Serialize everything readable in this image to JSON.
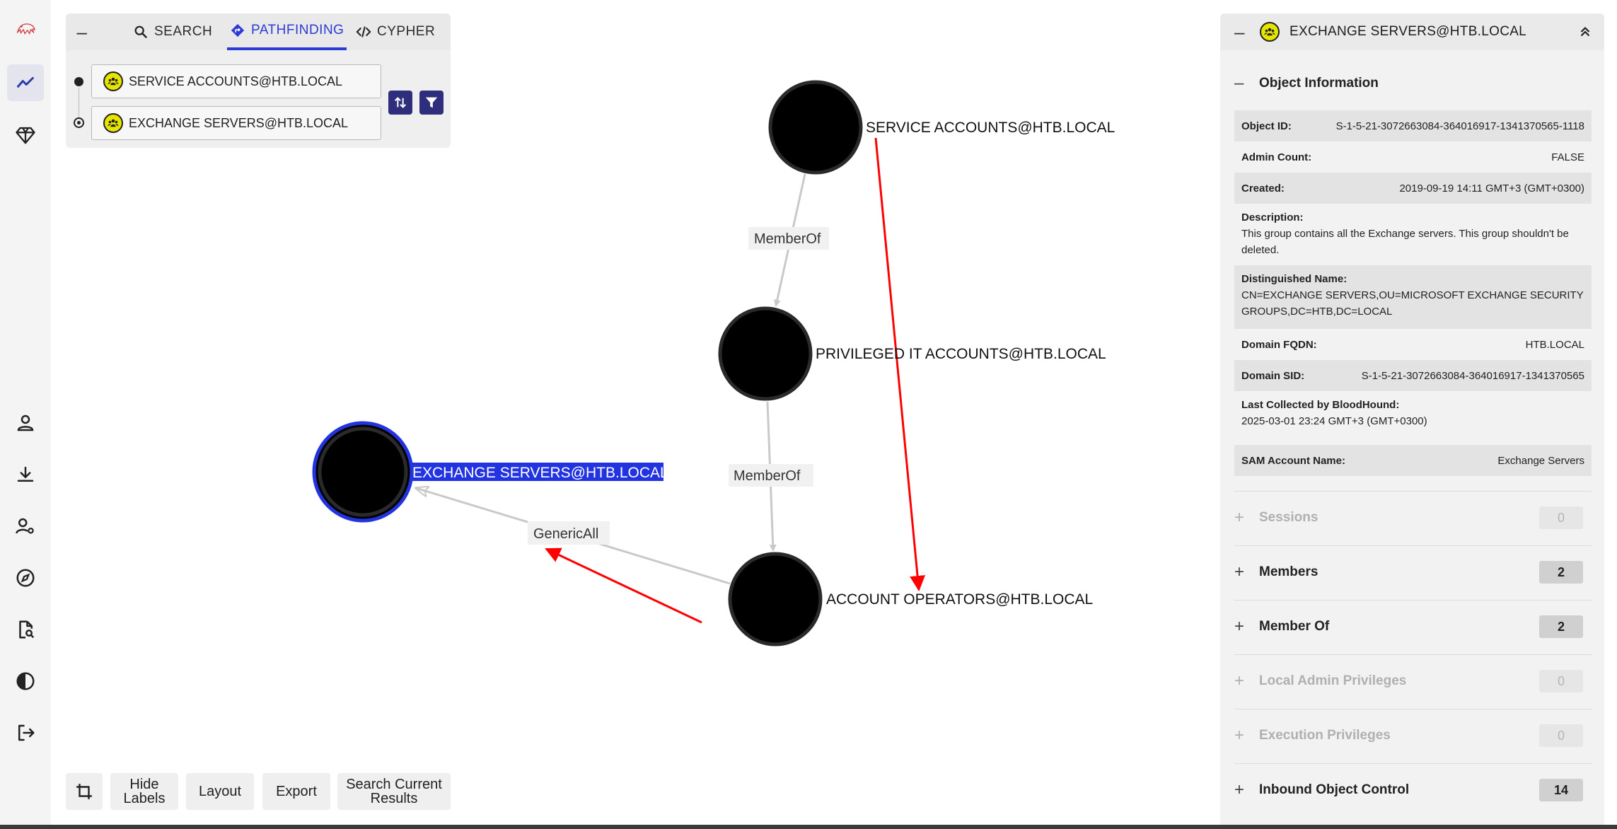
{
  "search": {
    "tabs": [
      {
        "label": "SEARCH",
        "icon": "search-icon"
      },
      {
        "label": "PATHFINDING",
        "icon": "pathfinding-icon"
      },
      {
        "label": "CYPHER",
        "icon": "code-icon"
      }
    ],
    "active_tab": "PATHFINDING",
    "start_node": "SERVICE ACCOUNTS@HTB.LOCAL",
    "end_node": "EXCHANGE SERVERS@HTB.LOCAL"
  },
  "graph": {
    "nodes": [
      {
        "id": "svc",
        "label": "SERVICE ACCOUNTS@HTB.LOCAL"
      },
      {
        "id": "priv",
        "label": "PRIVILEGED IT ACCOUNTS@HTB.LOCAL"
      },
      {
        "id": "exch",
        "label": "EXCHANGE SERVERS@HTB.LOCAL",
        "selected": true
      },
      {
        "id": "acct",
        "label": "ACCOUNT OPERATORS@HTB.LOCAL"
      }
    ],
    "edges": [
      {
        "from": "svc",
        "to": "priv",
        "label": "MemberOf"
      },
      {
        "from": "priv",
        "to": "acct",
        "label": "MemberOf"
      },
      {
        "from": "acct",
        "to": "exch",
        "label": "GenericAll"
      }
    ]
  },
  "toolbar": {
    "hide_labels": "Hide Labels",
    "layout": "Layout",
    "export": "Export",
    "search_current": "Search Current Results"
  },
  "panel": {
    "title": "EXCHANGE SERVERS@HTB.LOCAL",
    "object_info_label": "Object Information",
    "object_id": {
      "key": "Object ID:",
      "value": "S-1-5-21-3072663084-364016917-1341370565-1118"
    },
    "admin_count": {
      "key": "Admin Count:",
      "value": "FALSE"
    },
    "created": {
      "key": "Created:",
      "value": "2019-09-19 14:11 GMT+3 (GMT+0300)"
    },
    "description": {
      "key": "Description:",
      "value": "This group contains all the Exchange servers. This group shouldn't be deleted."
    },
    "distinguished_name": {
      "key": "Distinguished Name:",
      "value": "CN=EXCHANGE SERVERS,OU=MICROSOFT EXCHANGE SECURITY GROUPS,DC=HTB,DC=LOCAL"
    },
    "domain_fqdn": {
      "key": "Domain FQDN:",
      "value": "HTB.LOCAL"
    },
    "domain_sid": {
      "key": "Domain SID:",
      "value": "S-1-5-21-3072663084-364016917-1341370565"
    },
    "last_collected": {
      "key": "Last Collected by BloodHound:",
      "value": "2025-03-01 23:24 GMT+3 (GMT+0300)"
    },
    "sam_account": {
      "key": "SAM Account Name:",
      "value": "Exchange Servers"
    },
    "sections": [
      {
        "label": "Sessions",
        "count": "0",
        "enabled": false
      },
      {
        "label": "Members",
        "count": "2",
        "enabled": true
      },
      {
        "label": "Member Of",
        "count": "2",
        "enabled": true
      },
      {
        "label": "Local Admin Privileges",
        "count": "0",
        "enabled": false
      },
      {
        "label": "Execution Privileges",
        "count": "0",
        "enabled": false
      },
      {
        "label": "Inbound Object Control",
        "count": "14",
        "enabled": true
      }
    ]
  },
  "colors": {
    "accent": "#2c3bd6",
    "selected_node_ring": "#2233e0",
    "path_arrow": "#ff0000",
    "group_icon": "#e6e500"
  }
}
